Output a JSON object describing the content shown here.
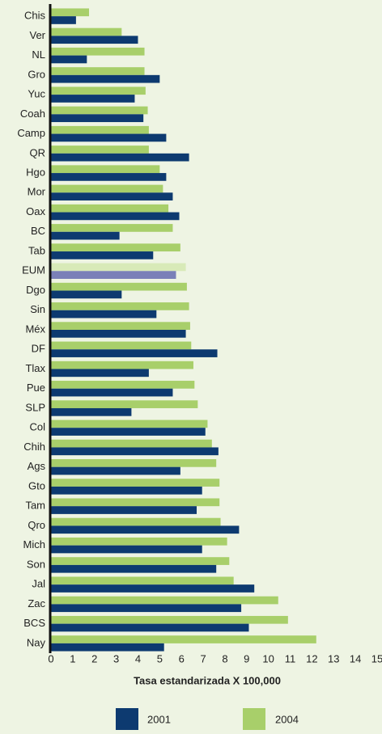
{
  "chart_data": {
    "type": "hbar",
    "xlabel": "Tasa estandarizada X 100,000",
    "categories": [
      "Chis",
      "Ver",
      "NL",
      "Gro",
      "Yuc",
      "Coah",
      "Camp",
      "QR",
      "Hgo",
      "Mor",
      "Oax",
      "BC",
      "Tab",
      "EUM",
      "Dgo",
      "Sin",
      "Méx",
      "DF",
      "Tlax",
      "Pue",
      "SLP",
      "Col",
      "Chih",
      "Ags",
      "Gto",
      "Tam",
      "Qro",
      "Mich",
      "Son",
      "Jal",
      "Zac",
      "BCS",
      "Nay"
    ],
    "series": [
      {
        "name": "2001",
        "color": "#0d3a70",
        "highlight_color": "#7a80b8",
        "values": [
          1.15,
          4.0,
          1.65,
          5.0,
          3.85,
          4.25,
          5.3,
          6.35,
          5.3,
          5.6,
          5.9,
          3.15,
          4.7,
          5.75,
          3.25,
          4.85,
          6.2,
          7.65,
          4.5,
          5.6,
          3.7,
          7.1,
          7.7,
          5.95,
          6.95,
          6.7,
          8.65,
          6.95,
          7.6,
          9.35,
          8.75,
          9.1,
          5.2
        ]
      },
      {
        "name": "2004",
        "color": "#a8cf6a",
        "highlight_color": "#d8eab8",
        "values": [
          1.75,
          3.25,
          4.3,
          4.3,
          4.35,
          4.45,
          4.5,
          4.5,
          5.0,
          5.15,
          5.4,
          5.6,
          5.95,
          6.2,
          6.25,
          6.35,
          6.4,
          6.45,
          6.55,
          6.6,
          6.75,
          7.2,
          7.4,
          7.6,
          7.75,
          7.75,
          7.8,
          8.1,
          8.2,
          8.4,
          10.45,
          10.9,
          12.2
        ]
      }
    ],
    "highlight_index": 13,
    "xlim": [
      0,
      15
    ],
    "xticks": [
      0,
      1,
      2,
      3,
      4,
      5,
      6,
      7,
      8,
      9,
      10,
      11,
      12,
      13,
      14,
      15
    ],
    "grid": false
  }
}
